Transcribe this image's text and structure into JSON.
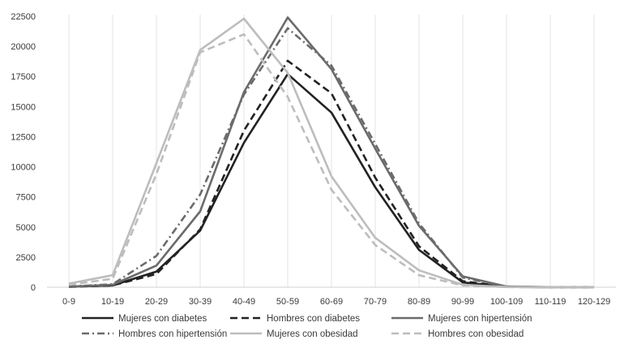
{
  "chart_data": {
    "type": "line",
    "title": "",
    "xlabel": "",
    "ylabel": "",
    "categories": [
      "0-9",
      "10-19",
      "20-29",
      "30-39",
      "40-49",
      "50-59",
      "60-69",
      "70-79",
      "80-89",
      "90-99",
      "100-109",
      "110-119",
      "120-129"
    ],
    "ylim": [
      0,
      22500
    ],
    "yticks": [
      0,
      2500,
      5000,
      7500,
      10000,
      12500,
      15000,
      17500,
      20000,
      22500
    ],
    "grid": "vertical-at-categories",
    "legend_position": "bottom",
    "series": [
      {
        "name": "Mujeres con diabetes",
        "color": "#222222",
        "dash": "solid",
        "values": [
          50,
          150,
          1300,
          4700,
          12000,
          17700,
          14500,
          8300,
          3100,
          400,
          30,
          10,
          5
        ]
      },
      {
        "name": "Hombres con diabetes",
        "color": "#222222",
        "dash": "dash",
        "values": [
          30,
          150,
          1100,
          4800,
          13000,
          18800,
          16100,
          9100,
          3400,
          500,
          40,
          10,
          5
        ]
      },
      {
        "name": "Mujeres con hipertensión",
        "color": "#6b6b6b",
        "dash": "solid",
        "values": [
          50,
          200,
          1800,
          6300,
          16200,
          22400,
          18100,
          11500,
          5100,
          900,
          60,
          15,
          5
        ]
      },
      {
        "name": "Hombres con hipertensión",
        "color": "#6b6b6b",
        "dash": "dashdot",
        "values": [
          60,
          250,
          2600,
          7700,
          16000,
          21500,
          18400,
          11900,
          5300,
          800,
          50,
          10,
          5
        ]
      },
      {
        "name": "Mujeres con obesidad",
        "color": "#bdbdbd",
        "dash": "solid",
        "values": [
          300,
          1000,
          10300,
          19700,
          22300,
          17800,
          9200,
          4100,
          1400,
          200,
          20,
          5,
          0
        ]
      },
      {
        "name": "Hombres con obesidad",
        "color": "#bdbdbd",
        "dash": "dash",
        "values": [
          200,
          700,
          9400,
          19500,
          21000,
          15800,
          8100,
          3500,
          1000,
          150,
          15,
          5,
          0
        ]
      }
    ]
  }
}
